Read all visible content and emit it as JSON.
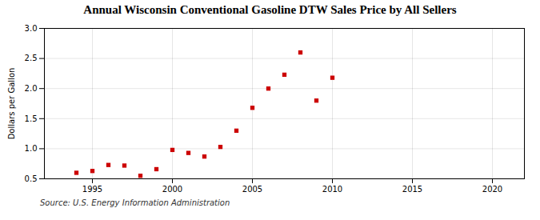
{
  "chart_data": {
    "type": "scatter",
    "title": "Annual Wisconsin Conventional Gasoline DTW Sales Price by All Sellers",
    "ylabel": "Dollars per Gallon",
    "annotations": [
      "Source: U.S. Energy Information Administration"
    ],
    "x": [
      1994,
      1995,
      1996,
      1997,
      1998,
      1999,
      2000,
      2001,
      2002,
      2003,
      2004,
      2005,
      2006,
      2007,
      2008,
      2009,
      2010
    ],
    "values": [
      0.6,
      0.63,
      0.73,
      0.72,
      0.55,
      0.66,
      0.98,
      0.93,
      0.87,
      1.03,
      1.3,
      1.68,
      2.0,
      2.23,
      2.6,
      1.8,
      2.18
    ],
    "color": "#cc0000",
    "marker": "square",
    "xlim": [
      1992,
      2022
    ],
    "xticks": [
      1995,
      2000,
      2005,
      2010,
      2015,
      2020
    ],
    "ylim": [
      0.5,
      3.0
    ],
    "yticks": [
      0.5,
      {
        "value": 1,
        "label": "1.0"
      },
      1.5,
      {
        "value": 2,
        "label": "2.0"
      },
      2.5,
      {
        "value": 3,
        "label": "3.0"
      }
    ],
    "grid": true
  }
}
